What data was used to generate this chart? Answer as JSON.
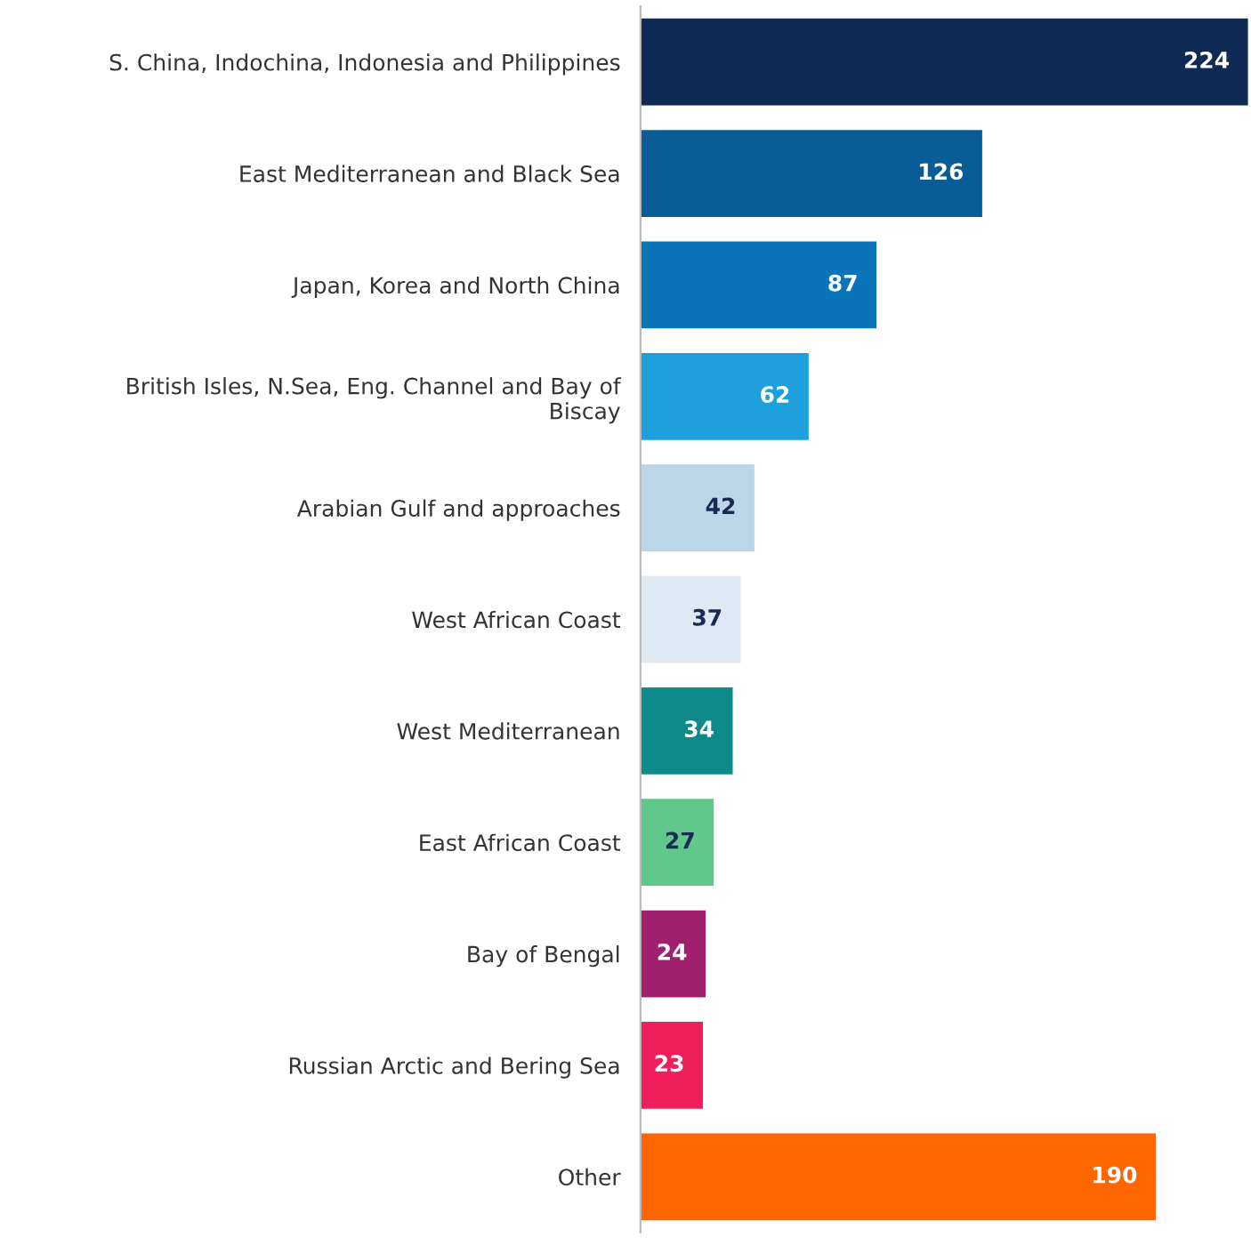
{
  "chart_data": {
    "type": "bar",
    "orientation": "horizontal",
    "data_labels": true,
    "grid": false,
    "legend": false,
    "tick_labels": "y",
    "categories": [
      "S. China, Indochina, Indonesia and Philippines",
      "East Mediterranean and Black Sea",
      "Japan, Korea and North China",
      "British Isles, N.Sea, Eng. Channel and Bay of\nBiscay",
      "Arabian Gulf and approaches",
      "West African Coast",
      "West Mediterranean",
      "East African Coast",
      "Bay of Bengal",
      "Russian Arctic and Bering Sea",
      "Other"
    ],
    "values": [
      224,
      126,
      87,
      62,
      42,
      37,
      34,
      27,
      24,
      23,
      190
    ],
    "colors": [
      "#0e2a55",
      "#0a5c97",
      "#0a74b8",
      "#1ea0dc",
      "#bad6e8",
      "#ddeaf3",
      "#0f8a8a",
      "#5fc88a",
      "#a0206e",
      "#f01e5a",
      "#ff6600"
    ]
  }
}
